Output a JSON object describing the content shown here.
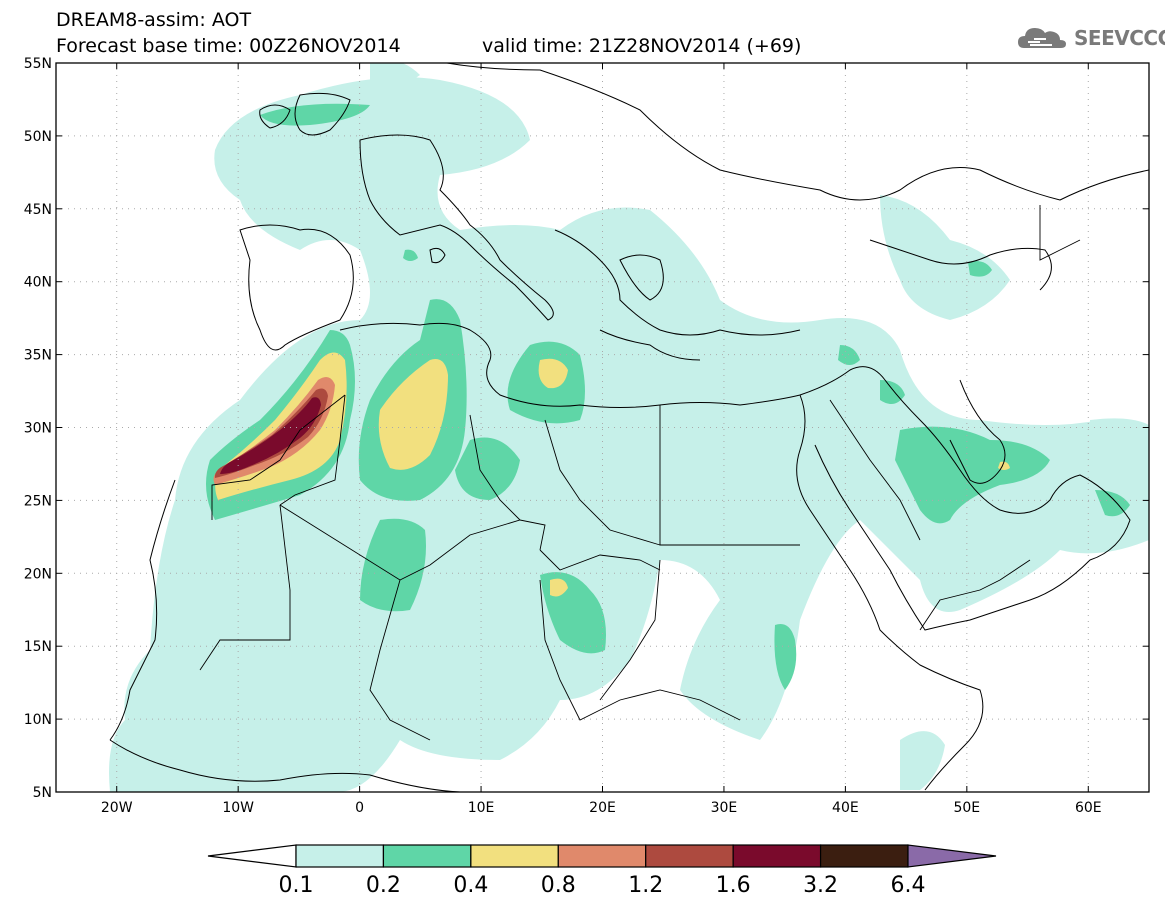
{
  "header": {
    "title": "DREAM8-assim: AOT",
    "base_time": "Forecast base time: 00Z26NOV2014",
    "valid_time": "valid time: 21Z28NOV2014 (+69)"
  },
  "logo": {
    "text": "SEEVCCC",
    "icon": "cloud-icon"
  },
  "map": {
    "lat_labels": [
      "55N",
      "50N",
      "45N",
      "40N",
      "35N",
      "30N",
      "25N",
      "20N",
      "15N",
      "10N",
      "5N"
    ],
    "lon_labels": [
      "20W",
      "10W",
      "0",
      "10E",
      "20E",
      "30E",
      "40E",
      "50E",
      "60E"
    ],
    "lat_range": [
      5,
      55
    ],
    "lon_range": [
      -25,
      65
    ],
    "grid": true,
    "field": "AOT"
  },
  "colorbar": {
    "labels": [
      "0.1",
      "0.2",
      "0.4",
      "0.8",
      "1.2",
      "1.6",
      "3.2",
      "6.4"
    ],
    "colors": [
      "#ffffff",
      "#c6f0e9",
      "#5fd6a7",
      "#f2e07f",
      "#e0896b",
      "#ad4a3f",
      "#7a0a2c",
      "#3b1e10",
      "#8a6aa8"
    ]
  },
  "palette": {
    "c1": "#c6f0e9",
    "c2": "#5fd6a7",
    "c3": "#f2e07f",
    "c4": "#e0896b",
    "c5": "#ad4a3f",
    "c6": "#7a0a2c"
  }
}
